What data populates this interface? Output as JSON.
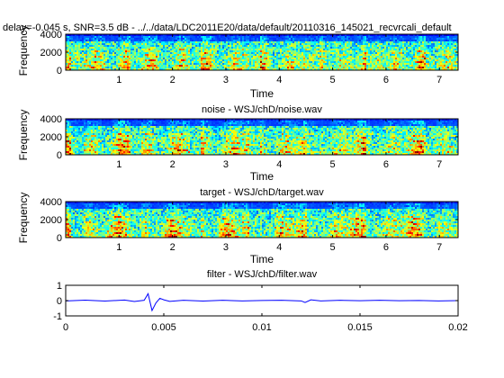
{
  "figure": {
    "background": "#ffffff"
  },
  "chart_data": [
    {
      "type": "heatmap",
      "title": "delay=-0.045 s, SNR=3.5 dB - ../../data/LDC2011E20/data/default/20110316_145021_recvrcali_default",
      "xlabel": "Time",
      "ylabel": "Frequency",
      "xlim": [
        0,
        7.35
      ],
      "ylim": [
        0,
        4000
      ],
      "x_ticks": [
        1,
        2,
        3,
        4,
        5,
        6,
        7
      ],
      "y_ticks": [
        0,
        2000,
        4000
      ],
      "grid": false,
      "colormap": "jet",
      "content": "spectrogram"
    },
    {
      "type": "heatmap",
      "title": "noise - WSJ/chD/noise.wav",
      "xlabel": "Time",
      "ylabel": "Frequency",
      "xlim": [
        0,
        7.35
      ],
      "ylim": [
        0,
        4000
      ],
      "x_ticks": [
        1,
        2,
        3,
        4,
        5,
        6,
        7
      ],
      "y_ticks": [
        0,
        2000,
        4000
      ],
      "grid": false,
      "colormap": "jet",
      "content": "spectrogram"
    },
    {
      "type": "heatmap",
      "title": "target - WSJ/chD/target.wav",
      "xlabel": "Time",
      "ylabel": "Frequency",
      "xlim": [
        0,
        7.35
      ],
      "ylim": [
        0,
        4000
      ],
      "x_ticks": [
        1,
        2,
        3,
        4,
        5,
        6,
        7
      ],
      "y_ticks": [
        0,
        2000,
        4000
      ],
      "grid": false,
      "colormap": "jet",
      "content": "spectrogram"
    },
    {
      "type": "line",
      "title": "filter - WSJ/chD/filter.wav",
      "xlabel": "",
      "ylabel": "",
      "xlim": [
        0,
        0.02
      ],
      "ylim": [
        -1,
        1
      ],
      "x_ticks": [
        0,
        0.005,
        0.01,
        0.015,
        0.02
      ],
      "x_tick_labels": [
        "0",
        "0.005",
        "0.01",
        "0.015",
        "0.02"
      ],
      "y_ticks": [
        -1,
        0,
        1
      ],
      "grid": false,
      "series": [
        {
          "color": "#0000ff",
          "x": [
            0,
            0.001,
            0.002,
            0.003,
            0.0035,
            0.004,
            0.0042,
            0.0044,
            0.0046,
            0.0048,
            0.005,
            0.0053,
            0.006,
            0.007,
            0.008,
            0.009,
            0.01,
            0.011,
            0.012,
            0.0122,
            0.0125,
            0.013,
            0.014,
            0.015,
            0.016,
            0.017,
            0.018,
            0.019,
            0.02
          ],
          "y": [
            -0.02,
            0.03,
            -0.03,
            0.04,
            -0.06,
            0.02,
            0.45,
            -0.65,
            -0.15,
            0.15,
            0.05,
            -0.05,
            0.02,
            -0.03,
            0.02,
            -0.02,
            0.01,
            0.02,
            -0.02,
            -0.12,
            0.05,
            -0.02,
            0.02,
            -0.01,
            0.02,
            -0.01,
            0.01,
            -0.02,
            0.0
          ]
        }
      ]
    }
  ]
}
